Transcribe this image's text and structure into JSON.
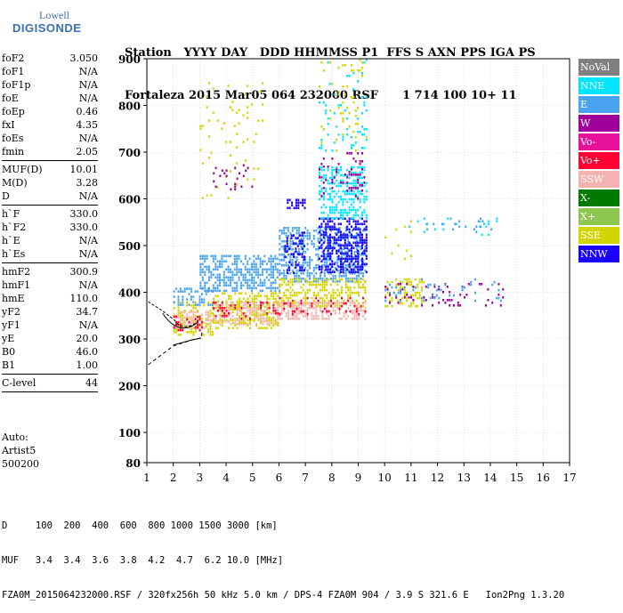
{
  "logo": {
    "line1": "Lowell",
    "line2": "DIGISONDE"
  },
  "header": {
    "labels": [
      "Station",
      "YYYY",
      "DAY",
      "DDD",
      "HHMMSS",
      "P1",
      "FFS",
      "S",
      "AXN",
      "PPS",
      "IGA",
      "PS"
    ],
    "values": [
      "Fortaleza",
      "2015",
      "Mar05",
      "064",
      "232000",
      "RSF",
      "1",
      "714",
      "100",
      "10+",
      "11"
    ]
  },
  "params_group1": [
    {
      "name": "foF2",
      "value": "3.050"
    },
    {
      "name": "foF1",
      "value": "N/A"
    },
    {
      "name": "foF1p",
      "value": "N/A"
    },
    {
      "name": "foE",
      "value": "N/A"
    },
    {
      "name": "foEp",
      "value": "0.46"
    },
    {
      "name": "fxI",
      "value": "4.35"
    },
    {
      "name": "foEs",
      "value": "N/A"
    },
    {
      "name": "fmin",
      "value": "2.05"
    }
  ],
  "params_group2": [
    {
      "name": "MUF(D)",
      "value": "10.01"
    },
    {
      "name": "M(D)",
      "value": "3.28"
    },
    {
      "name": "D",
      "value": "N/A"
    }
  ],
  "params_group3": [
    {
      "name": "h`F",
      "value": "330.0"
    },
    {
      "name": "h`F2",
      "value": "330.0"
    },
    {
      "name": "h`E",
      "value": "N/A"
    },
    {
      "name": "h`Es",
      "value": "N/A"
    }
  ],
  "params_group4": [
    {
      "name": "hmF2",
      "value": "300.9"
    },
    {
      "name": "hmF1",
      "value": "N/A"
    },
    {
      "name": "hmE",
      "value": "110.0"
    },
    {
      "name": "yF2",
      "value": "34.7"
    },
    {
      "name": "yF1",
      "value": "N/A"
    },
    {
      "name": "yE",
      "value": "20.0"
    },
    {
      "name": "B0",
      "value": "46.0"
    },
    {
      "name": "B1",
      "value": "1.00"
    }
  ],
  "params_group5": [
    {
      "name": "C-level",
      "value": "44"
    }
  ],
  "auto": {
    "line1": "Auto:",
    "line2": "Artist5",
    "line3": "500200"
  },
  "footer": {
    "d_line": "D     100  200  400  600  800 1000 1500 3000 [km]",
    "muf_line": "MUF   3.4  3.4  3.6  3.8  4.2  4.7  6.2 10.0 [MHz]",
    "file_line": "FZA0M_2015064232000.RSF / 320fx256h 50 kHz 5.0 km / DPS-4 FZA0M 904 / 3.9 S 321.6 E   Ion2Png 1.3.20"
  },
  "legend": [
    {
      "label": "NoVal",
      "color": "#808080"
    },
    {
      "label": "NNE",
      "color": "#00e5ff"
    },
    {
      "label": "E",
      "color": "#4aa3f0"
    },
    {
      "label": "W",
      "color": "#a0009a"
    },
    {
      "label": "Vo-",
      "color": "#e8119c"
    },
    {
      "label": "Vo+",
      "color": "#ff0033"
    },
    {
      "label": "SSW",
      "color": "#f4b3b0"
    },
    {
      "label": "X-",
      "color": "#007a00"
    },
    {
      "label": "X+",
      "color": "#8cc850"
    },
    {
      "label": "SSE",
      "color": "#d4d400"
    },
    {
      "label": "NNW",
      "color": "#1a00ff"
    }
  ],
  "chart_data": {
    "type": "scatter",
    "xlim": [
      1,
      17
    ],
    "ylim": [
      80,
      900
    ],
    "x_ticks": [
      "1",
      "2",
      "3",
      "4",
      "5",
      "6",
      "7",
      "8",
      "9",
      "10",
      "11",
      "12",
      "13",
      "14",
      "15",
      "16",
      "17"
    ],
    "y_ticks": [
      "80",
      "100",
      "200",
      "300",
      "400",
      "500",
      "600",
      "700",
      "800",
      "900"
    ],
    "grid": true,
    "legend_placement": "right",
    "clusters": [
      {
        "series": "SSW",
        "x": [
          2.0,
          3.5
        ],
        "y": [
          320,
          360
        ],
        "density": 0.55
      },
      {
        "series": "SSE",
        "x": [
          2.0,
          3.5
        ],
        "y": [
          310,
          380
        ],
        "density": 0.35
      },
      {
        "series": "Vo+",
        "x": [
          2.0,
          3.2
        ],
        "y": [
          320,
          350
        ],
        "density": 0.3
      },
      {
        "series": "E",
        "x": [
          2.0,
          3.5
        ],
        "y": [
          370,
          410
        ],
        "density": 0.4
      },
      {
        "series": "SSW",
        "x": [
          3.5,
          6.0
        ],
        "y": [
          330,
          380
        ],
        "density": 0.6
      },
      {
        "series": "SSE",
        "x": [
          3.5,
          6.0
        ],
        "y": [
          320,
          400
        ],
        "density": 0.4
      },
      {
        "series": "Vo+",
        "x": [
          3.5,
          6.0
        ],
        "y": [
          340,
          380
        ],
        "density": 0.2
      },
      {
        "series": "E",
        "x": [
          3.0,
          6.0
        ],
        "y": [
          400,
          480
        ],
        "density": 0.55
      },
      {
        "series": "SSE",
        "x": [
          3.0,
          5.5
        ],
        "y": [
          600,
          850
        ],
        "density": 0.05
      },
      {
        "series": "W",
        "x": [
          3.5,
          5.0
        ],
        "y": [
          620,
          680
        ],
        "density": 0.12
      },
      {
        "series": "E",
        "x": [
          6.0,
          9.3
        ],
        "y": [
          420,
          540
        ],
        "density": 0.5
      },
      {
        "series": "NNW",
        "x": [
          6.2,
          7.0
        ],
        "y": [
          440,
          530
        ],
        "density": 0.4
      },
      {
        "series": "NNW",
        "x": [
          6.3,
          7.0
        ],
        "y": [
          580,
          600
        ],
        "density": 0.5
      },
      {
        "series": "NNW",
        "x": [
          7.5,
          9.3
        ],
        "y": [
          440,
          560
        ],
        "density": 0.55
      },
      {
        "series": "NNE",
        "x": [
          7.5,
          9.3
        ],
        "y": [
          560,
          670
        ],
        "density": 0.45
      },
      {
        "series": "W",
        "x": [
          7.5,
          9.3
        ],
        "y": [
          600,
          700
        ],
        "density": 0.15
      },
      {
        "series": "SSE",
        "x": [
          6.0,
          9.3
        ],
        "y": [
          370,
          430
        ],
        "density": 0.45
      },
      {
        "series": "SSW",
        "x": [
          6.0,
          9.3
        ],
        "y": [
          345,
          380
        ],
        "density": 0.5
      },
      {
        "series": "Vo+",
        "x": [
          6.0,
          9.3
        ],
        "y": [
          350,
          390
        ],
        "density": 0.15
      },
      {
        "series": "NNE",
        "x": [
          7.5,
          9.3
        ],
        "y": [
          700,
          900
        ],
        "density": 0.08
      },
      {
        "series": "SSE",
        "x": [
          7.5,
          9.3
        ],
        "y": [
          700,
          900
        ],
        "density": 0.05
      },
      {
        "series": "SSE",
        "x": [
          10.0,
          11.5
        ],
        "y": [
          370,
          430
        ],
        "density": 0.35
      },
      {
        "series": "W",
        "x": [
          10.0,
          14.5
        ],
        "y": [
          370,
          420
        ],
        "density": 0.1
      },
      {
        "series": "E",
        "x": [
          10.0,
          14.5
        ],
        "y": [
          380,
          430
        ],
        "density": 0.1
      },
      {
        "series": "NNE",
        "x": [
          10.5,
          14.5
        ],
        "y": [
          520,
          560
        ],
        "density": 0.05
      },
      {
        "series": "E",
        "x": [
          11.5,
          14.2
        ],
        "y": [
          530,
          560
        ],
        "density": 0.06
      },
      {
        "series": "SSE",
        "x": [
          10.0,
          11.0
        ],
        "y": [
          460,
          560
        ],
        "density": 0.05
      }
    ]
  }
}
